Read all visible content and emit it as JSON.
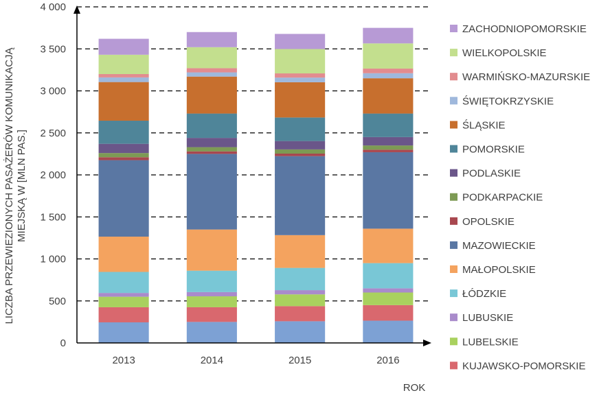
{
  "chart_data": {
    "type": "bar",
    "stacked": true,
    "title": "",
    "xlabel": "ROK",
    "ylabel": "LICZBA PRZEWIEZIONYCH PASAŻERÓW KOMUNIKACJĄ MIEJSKĄ W [MLN PAS.]",
    "ylabel_lines": [
      "LICZBA PRZEWIEZIONYCH PASAŻERÓW KOMUNIKACJĄ",
      "MIEJSKĄ W [MLN PAS.]"
    ],
    "ylim": [
      0,
      4000
    ],
    "yticks": [
      0,
      500,
      1000,
      1500,
      2000,
      2500,
      3000,
      3500,
      4000
    ],
    "ytick_labels": [
      "0",
      "500",
      "1 000",
      "1 500",
      "2 000",
      "2 500",
      "3 000",
      "3 500",
      "4 000"
    ],
    "grid": "horizontal-dashed",
    "legend_position": "right",
    "categories": [
      "2013",
      "2014",
      "2015",
      "2016"
    ],
    "series": [
      {
        "name": "",
        "color": "#7da1d4",
        "values": [
          245,
          250,
          258,
          265
        ]
      },
      {
        "name": "KUJAWSKO-POMORSKIE",
        "color": "#d9686e",
        "values": [
          180,
          175,
          180,
          185
        ]
      },
      {
        "name": "LUBELSKIE",
        "color": "#a9d15e",
        "values": [
          125,
          130,
          140,
          150
        ]
      },
      {
        "name": "LUBUSKIE",
        "color": "#a98bcb",
        "values": [
          45,
          50,
          50,
          50
        ]
      },
      {
        "name": "ŁÓDZKIE",
        "color": "#79c7d6",
        "values": [
          250,
          255,
          265,
          300
        ]
      },
      {
        "name": "MAŁOPOLSKIE",
        "color": "#f4a35f",
        "values": [
          420,
          490,
          390,
          410
        ]
      },
      {
        "name": "MAZOWIECKIE",
        "color": "#5a77a3",
        "values": [
          910,
          900,
          940,
          910
        ]
      },
      {
        "name": "OPOLSKIE",
        "color": "#a8474f",
        "values": [
          35,
          30,
          30,
          30
        ]
      },
      {
        "name": "PODKARPACKIE",
        "color": "#7d9a54",
        "values": [
          50,
          50,
          50,
          50
        ]
      },
      {
        "name": "PODLASKIE",
        "color": "#6a5689",
        "values": [
          110,
          110,
          100,
          100
        ]
      },
      {
        "name": "POMORSKIE",
        "color": "#4f8599",
        "values": [
          275,
          290,
          280,
          280
        ]
      },
      {
        "name": "ŚLĄSKIE",
        "color": "#c76f2e",
        "values": [
          460,
          440,
          420,
          420
        ]
      },
      {
        "name": "ŚWIĘTOKRZYSKIE",
        "color": "#9fb8dc",
        "values": [
          55,
          50,
          55,
          60
        ]
      },
      {
        "name": "WARMIŃSKO-MAZURSKIE",
        "color": "#e28c8f",
        "values": [
          40,
          50,
          50,
          55
        ]
      },
      {
        "name": "WIELKOPOLSKIE",
        "color": "#c3df8e",
        "values": [
          230,
          250,
          290,
          300
        ]
      },
      {
        "name": "ZACHODNIOPOMORSKIE",
        "color": "#b79ad5",
        "values": [
          190,
          180,
          180,
          185
        ]
      }
    ],
    "legend_order": [
      "ZACHODNIOPOMORSKIE",
      "WIELKOPOLSKIE",
      "WARMIŃSKO-MAZURSKIE",
      "ŚWIĘTOKRZYSKIE",
      "ŚLĄSKIE",
      "POMORSKIE",
      "PODLASKIE",
      "PODKARPACKIE",
      "OPOLSKIE",
      "MAZOWIECKIE",
      "MAŁOPOLSKIE",
      "ŁÓDZKIE",
      "LUBUSKIE",
      "LUBELSKIE",
      "KUJAWSKO-POMORSKIE"
    ]
  }
}
